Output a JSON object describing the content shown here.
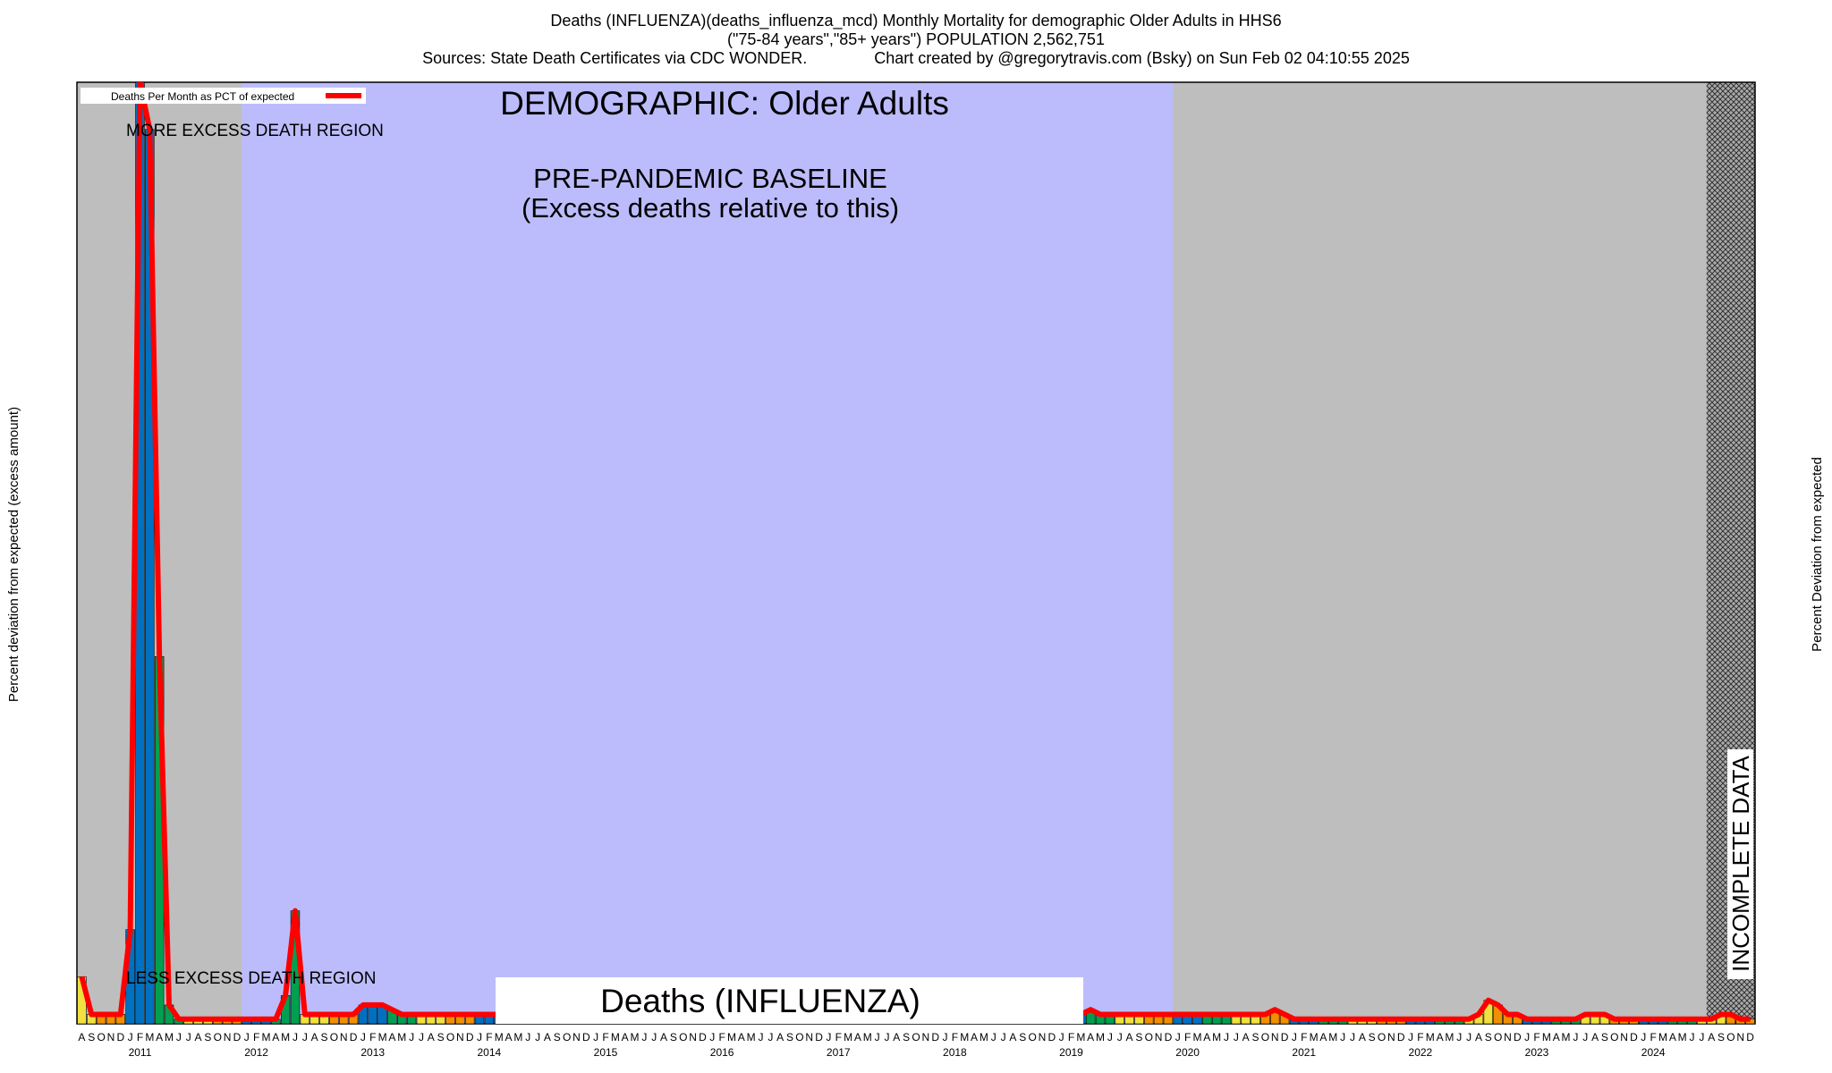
{
  "chart_data": {
    "type": "line",
    "title": "Deaths (INFLUENZA)(deaths_influenza_mcd) Monthly Mortality for demographic Older Adults in HHS6",
    "subtitle": "(\"75-84 years\",\"85+ years\") POPULATION 2,562,751",
    "source": "Sources: State Death Certificates via CDC WONDER.               Chart created by @gregorytravis.com (Bsky) on Sun Feb 02 04:10:55 2025",
    "y_label": "Percent deviation from expected (excess amount)",
    "y2_label": "Percent Deviation from expected",
    "annotations": {
      "demographic": "DEMOGRAPHIC: Older Adults",
      "more": "MORE EXCESS DEATH REGION",
      "baseline": "PRE-PANDEMIC BASELINE",
      "baseline_note": "(Excess deaths relative to this)",
      "less": "LESS EXCESS DEATH REGION",
      "cause": "Deaths (INFLUENZA)",
      "incomplete": "INCOMPLETE DATA"
    },
    "categories": [
      "A",
      "S",
      "O",
      "N",
      "D",
      "J",
      "F",
      "M",
      "A",
      "M",
      "J",
      "J",
      "A",
      "S",
      "O",
      "N",
      "D",
      "J",
      "F",
      "M",
      "A",
      "M",
      "J",
      "J",
      "A",
      "S",
      "O",
      "N",
      "D",
      "J",
      "F",
      "M",
      "A",
      "M",
      "J",
      "J",
      "A",
      "S",
      "O",
      "N",
      "D",
      "J",
      "F",
      "M",
      "A",
      "M",
      "J",
      "J",
      "A",
      "S",
      "O",
      "N",
      "D",
      "J",
      "F",
      "M",
      "A",
      "M",
      "J",
      "J",
      "A",
      "S",
      "O",
      "N",
      "D",
      "J",
      "F",
      "M",
      "A",
      "M",
      "J",
      "J",
      "A",
      "S",
      "O",
      "N",
      "D",
      "J",
      "F",
      "M",
      "A",
      "M",
      "J",
      "J",
      "A",
      "S",
      "O",
      "N",
      "D",
      "J",
      "F",
      "M",
      "A",
      "M",
      "J",
      "J",
      "A",
      "S",
      "O",
      "N",
      "D",
      "J",
      "F",
      "M",
      "A",
      "M",
      "J",
      "J",
      "A",
      "S",
      "O",
      "N",
      "D",
      "J",
      "F",
      "M",
      "A",
      "M",
      "J",
      "J",
      "A",
      "S",
      "O",
      "N",
      "D",
      "J",
      "F",
      "M",
      "A",
      "M",
      "J",
      "J",
      "A",
      "S",
      "O",
      "N",
      "D",
      "J",
      "F",
      "M",
      "A",
      "M",
      "J",
      "J",
      "A",
      "S",
      "O",
      "N",
      "D",
      "J",
      "F",
      "M",
      "A",
      "M",
      "J",
      "J",
      "A",
      "S",
      "O",
      "N",
      "D",
      "J",
      "F",
      "M",
      "A",
      "M",
      "J",
      "J",
      "A",
      "S",
      "O",
      "N",
      "D"
    ],
    "years": [
      "2011",
      "2012",
      "2013",
      "2014",
      "2015",
      "2016",
      "2017",
      "2018",
      "2019",
      "2020",
      "2021",
      "2022",
      "2023",
      "2024"
    ],
    "series": [
      {
        "name": "Deaths Per Month as PCT of expected",
        "color": "#ff0000",
        "values": [
          5,
          1,
          1,
          1,
          1,
          10,
          100,
          95,
          39,
          2,
          0.5,
          0.5,
          0.5,
          0.5,
          0.5,
          0.5,
          0.5,
          0.5,
          0.5,
          0.5,
          0.5,
          3,
          12,
          1,
          1,
          1,
          1,
          1,
          1,
          2,
          2,
          2,
          1.5,
          1,
          1,
          1,
          1,
          1,
          1,
          1,
          1,
          1,
          1,
          1,
          1,
          1,
          1,
          1,
          1,
          1,
          1,
          1,
          1,
          1,
          1,
          1,
          1,
          1,
          1,
          1,
          1,
          1,
          1,
          1,
          1,
          1,
          1,
          1,
          1,
          1,
          1,
          1,
          1,
          1,
          1,
          1,
          1,
          1,
          1,
          1,
          1,
          1,
          1,
          1,
          1,
          1,
          1,
          1,
          1,
          1,
          1,
          1,
          1,
          1,
          1,
          1,
          1,
          1,
          1,
          1,
          1,
          1,
          1,
          1,
          1.5,
          1,
          1,
          1,
          1,
          1,
          1,
          1,
          1,
          1,
          1,
          1,
          1,
          1,
          1,
          1,
          1,
          1,
          1,
          1.5,
          1,
          0.5,
          0.5,
          0.5,
          0.5,
          0.5,
          0.5,
          0.5,
          0.5,
          0.5,
          0.5,
          0.5,
          0.5,
          0.5,
          0.5,
          0.5,
          0.5,
          0.5,
          0.5,
          0.5,
          1,
          2.5,
          2,
          1,
          1,
          0.5,
          0.5,
          0.5,
          0.5,
          0.5,
          0.5,
          1,
          1,
          1,
          0.5,
          0.5,
          0.5,
          0.5,
          0.5,
          0.5,
          0.5,
          0.5,
          0.5,
          0.5,
          0.5,
          1,
          1,
          0.5,
          0.5
        ]
      }
    ],
    "bar_colors": [
      "#0070c0",
      "#0070c0",
      "#0070c0",
      "#00a050",
      "#00a050",
      "#00a050",
      "#f0e040",
      "#f0e040",
      "#f0e040",
      "#f09000",
      "#f09000",
      "#f09000"
    ],
    "ylim": [
      0,
      100
    ]
  }
}
